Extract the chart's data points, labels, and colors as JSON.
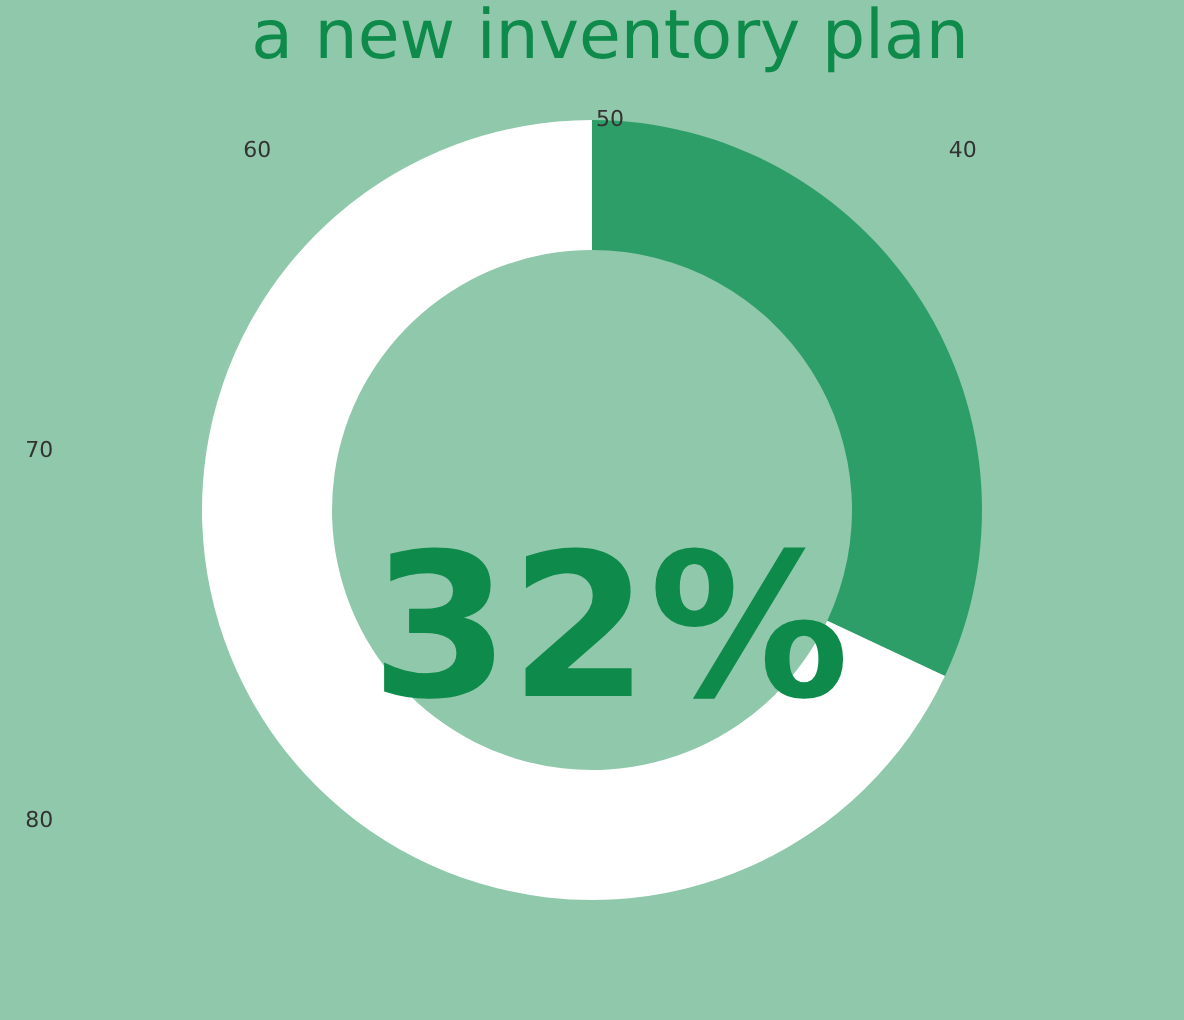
{
  "chart_data": {
    "type": "donut",
    "title": "a new inventory plan",
    "categories": [
      null,
      null
    ],
    "values": [
      32,
      68
    ],
    "colors": [
      "#2e9e68",
      "#ffffff"
    ],
    "annotations": [
      "32%",
      "50",
      "40",
      "60",
      "70",
      "80"
    ]
  }
}
